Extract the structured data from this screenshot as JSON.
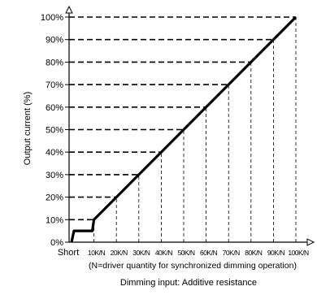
{
  "chart_data": {
    "type": "line",
    "title": "",
    "ylabel": "Output current (%)",
    "xlabel": "Dimming input: Additive resistance",
    "x_note": "(N=driver quantity for synchronized dimming operation)",
    "categories": [
      "Short",
      "10K/N",
      "20K/N",
      "30K/N",
      "40K/N",
      "50K/N",
      "60K/N",
      "70K/N",
      "80K/N",
      "90K/N",
      "100K/N"
    ],
    "y_ticks": [
      "0%",
      "10%",
      "20%",
      "30%",
      "40%",
      "50%",
      "60%",
      "70%",
      "80%",
      "90%",
      "100%"
    ],
    "ylim": [
      0,
      100
    ],
    "grid": "dashed reference lines",
    "series": [
      {
        "values": [
          5,
          10,
          20,
          30,
          40,
          50,
          60,
          70,
          80,
          90,
          100
        ]
      }
    ],
    "line_color": "#000000"
  }
}
